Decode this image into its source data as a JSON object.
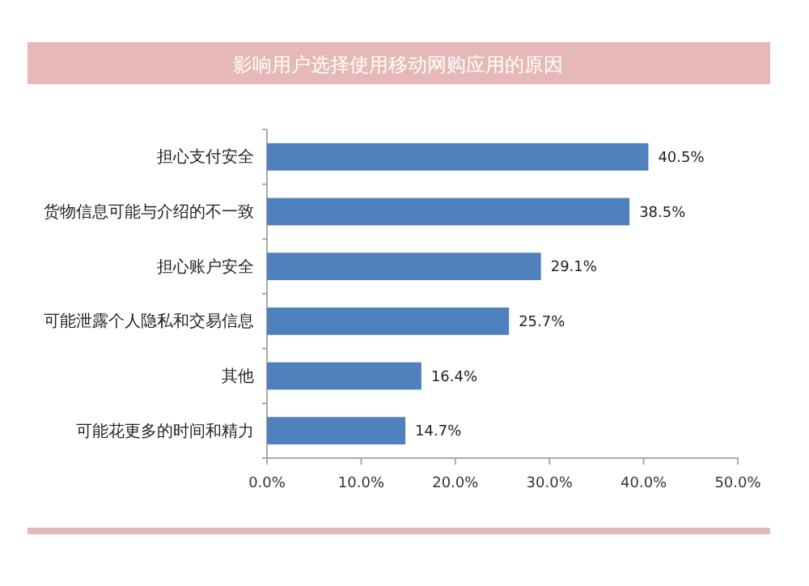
{
  "chart_data": {
    "type": "bar",
    "orientation": "horizontal",
    "title": "影响用户选择使用移动网购应用的原因",
    "categories": [
      "担心支付安全",
      "货物信息可能与介绍的不一致",
      "担心账户安全",
      "可能泄露个人隐私和交易信息",
      "其他",
      "可能花更多的时间和精力"
    ],
    "values": [
      40.5,
      38.5,
      29.1,
      25.7,
      16.4,
      14.7
    ],
    "value_labels": [
      "40.5%",
      "38.5%",
      "29.1%",
      "25.7%",
      "16.4%",
      "14.7%"
    ],
    "color": "#4f81bd",
    "xlim": [
      0,
      50
    ],
    "xticks": [
      {
        "value": 0,
        "label": "0.0%"
      },
      {
        "value": 10,
        "label": "10.0%"
      },
      {
        "value": 20,
        "label": "20.0%"
      },
      {
        "value": 30,
        "label": "30.0%"
      },
      {
        "value": 40,
        "label": "40.0%"
      },
      {
        "value": 50,
        "label": "50.0%"
      }
    ],
    "grid": false
  }
}
